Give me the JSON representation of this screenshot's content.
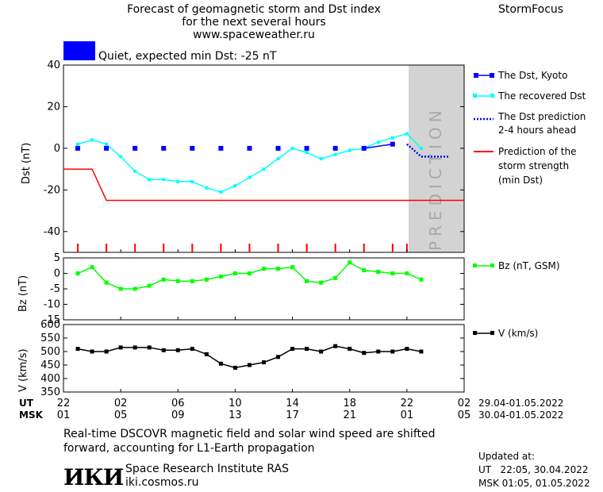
{
  "header": {
    "title_lines": [
      "Forecast of geomagnetic storm and Dst index",
      "for the next several hours",
      "www.spaceweather.ru"
    ],
    "brand": "StormFocus",
    "status_text": "Quiet, expected min Dst: -25 nT",
    "status_color": "#0000ff"
  },
  "prediction_text": "PREDICTION",
  "legends": {
    "dst_kyoto": "The Dst, Kyoto",
    "dst_recovered": "The recovered Dst",
    "dst_prediction_l1": "The Dst prediction",
    "dst_prediction_l2": "2-4 hours ahead",
    "storm_l1": "Prediction of the",
    "storm_l2": "storm strength",
    "storm_l3": "(min Dst)",
    "bz": "Bz (nT, GSM)",
    "v": "V (km/s)"
  },
  "time_axis": {
    "ut_label": "UT",
    "msk_label": "MSK",
    "ut_ticks": [
      "22",
      "02",
      "06",
      "10",
      "14",
      "18",
      "22",
      "02"
    ],
    "msk_ticks": [
      "01",
      "05",
      "09",
      "13",
      "17",
      "21",
      "01",
      "05"
    ],
    "ut_range": "29.04-01.05.2022",
    "msk_range": "30.04-01.05.2022"
  },
  "footer": {
    "note_l1": "Real-time DSCOVR magnetic field and solar wind speed are shifted",
    "note_l2": "forward, accounting for L1-Earth propagation",
    "logo_text": "ИКИ",
    "institute": "Space Research Institute RAS",
    "site": "iki.cosmos.ru",
    "updated_label": "Updated at:",
    "updated_ut": "UT   22:05, 30.04.2022",
    "updated_msk": "MSK 01:05, 01.05.2022"
  },
  "colors": {
    "kyoto": "#0000ff",
    "recovered": "#00ffff",
    "prediction": "#0000ff",
    "storm": "#ff0000",
    "bz": "#00ff00",
    "v": "#000000",
    "prediction_band": "#d3d3d3"
  },
  "chart_data": [
    {
      "type": "line",
      "ylabel": "Dst (nT)",
      "ylim": [
        -50,
        40
      ],
      "yticks": [
        40,
        20,
        0,
        -20,
        -40
      ],
      "xlim_hours": [
        0,
        28
      ],
      "prediction_start_hour": 24,
      "series": [
        {
          "name": "The Dst, Kyoto",
          "x": [
            1,
            3,
            5,
            7,
            9,
            11,
            13,
            15,
            17,
            19,
            21,
            23
          ],
          "y": [
            0,
            0,
            0,
            0,
            0,
            0,
            0,
            0,
            0,
            0,
            0,
            2
          ]
        },
        {
          "name": "The recovered Dst",
          "x": [
            1,
            2,
            3,
            4,
            5,
            6,
            7,
            8,
            9,
            10,
            11,
            12,
            13,
            14,
            15,
            16,
            17,
            18,
            19,
            20,
            21,
            22,
            23,
            24,
            25
          ],
          "y": [
            2,
            4,
            2,
            -4,
            -11,
            -15,
            -15,
            -16,
            -16,
            -19,
            -21,
            -18,
            -14,
            -10,
            -5,
            0,
            -2,
            -5,
            -3,
            -1,
            0,
            3,
            5,
            7,
            0
          ]
        },
        {
          "name": "The Dst prediction 2-4 hours ahead",
          "x": [
            24,
            25,
            26,
            27
          ],
          "y": [
            2,
            -4,
            -4,
            -4
          ]
        },
        {
          "name": "Prediction of the storm strength (min Dst)",
          "x": [
            0,
            2,
            3,
            28
          ],
          "y": [
            -10,
            -10,
            -25,
            -25
          ]
        }
      ],
      "event_marks_hours": [
        1,
        3,
        5,
        7,
        9,
        11,
        13,
        15,
        17,
        19,
        21,
        23,
        24
      ]
    },
    {
      "type": "line",
      "ylabel": "Bz (nT)",
      "ylim": [
        -15,
        5
      ],
      "yticks": [
        5,
        0,
        -5,
        -10,
        -15
      ],
      "series": [
        {
          "name": "Bz (nT, GSM)",
          "x": [
            1,
            2,
            3,
            4,
            5,
            6,
            7,
            8,
            9,
            10,
            11,
            12,
            13,
            14,
            15,
            16,
            17,
            18,
            19,
            20,
            21,
            22,
            23,
            24,
            25
          ],
          "y": [
            0,
            2,
            -3,
            -5,
            -5,
            -4,
            -2,
            -2.5,
            -2.5,
            -2,
            -1,
            0,
            0,
            1.5,
            1.5,
            2,
            -2.5,
            -3,
            -1.5,
            3.5,
            1,
            0.5,
            0,
            0,
            -2
          ]
        }
      ]
    },
    {
      "type": "line",
      "ylabel": "V (km/s)",
      "ylim": [
        350,
        600
      ],
      "yticks": [
        600,
        550,
        500,
        450,
        400,
        350
      ],
      "series": [
        {
          "name": "V (km/s)",
          "x": [
            1,
            2,
            3,
            4,
            5,
            6,
            7,
            8,
            9,
            10,
            11,
            12,
            13,
            14,
            15,
            16,
            17,
            18,
            19,
            20,
            21,
            22,
            23,
            24,
            25
          ],
          "y": [
            510,
            500,
            500,
            515,
            515,
            515,
            505,
            505,
            510,
            490,
            455,
            440,
            450,
            460,
            480,
            510,
            510,
            500,
            520,
            510,
            495,
            500,
            500,
            510,
            500
          ]
        }
      ]
    }
  ]
}
